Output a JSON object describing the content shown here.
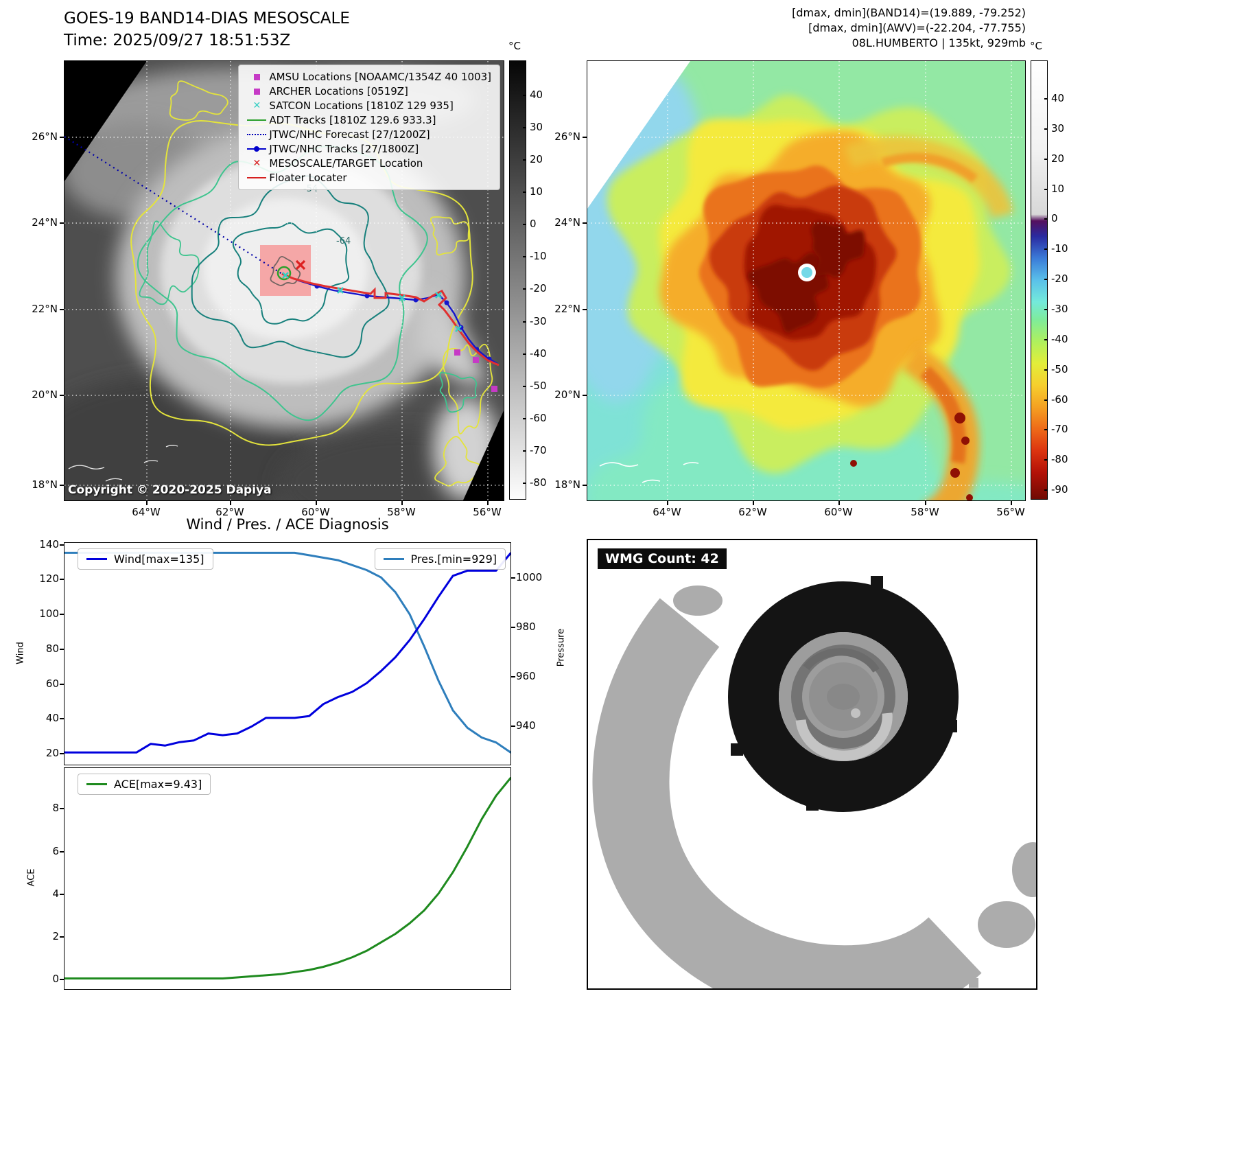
{
  "panel_band14": {
    "title": "GOES-19 BAND14-DIAS MESOSCALE",
    "time": "Time: 2025/09/27 18:51:53Z",
    "copyright": "Copyright © 2020-2025 Dapiya",
    "colorbar_unit": "°C",
    "colorbar_ticks": [
      "40",
      "30",
      "20",
      "10",
      "0",
      "-10",
      "-20",
      "-30",
      "-40",
      "-50",
      "-60",
      "-70",
      "-80"
    ],
    "lat_ticks": [
      "26°N",
      "24°N",
      "22°N",
      "20°N",
      "18°N"
    ],
    "lon_ticks": [
      "64°W",
      "62°W",
      "60°W",
      "58°W",
      "56°W"
    ],
    "contour_labels": [
      "-54",
      "-64"
    ],
    "legend_items": [
      {
        "label": "AMSU Locations [NOAAMC/1354Z 40 1003]",
        "marker": "square",
        "color": "#c63ac6"
      },
      {
        "label": "ARCHER Locations [0519Z]",
        "marker": "square",
        "color": "#c63ac6"
      },
      {
        "label": "SATCON Locations [1810Z 129 935]",
        "marker": "x",
        "color": "#35cfc3"
      },
      {
        "label": "ADT Tracks [1810Z 129.6 933.3]",
        "marker": "line",
        "color": "#2ca02c"
      },
      {
        "label": "JTWC/NHC Forecast [27/1200Z]",
        "marker": "dotted-line",
        "color": "#0000b8"
      },
      {
        "label": "JTWC/NHC Tracks [27/1800Z]",
        "marker": "line-marker",
        "color": "#0000cc"
      },
      {
        "label": "MESOSCALE/TARGET Location",
        "marker": "x",
        "color": "#d62020"
      },
      {
        "label": "Floater Locater",
        "marker": "line",
        "color": "#d62020"
      }
    ]
  },
  "panel_awv": {
    "header_lines": [
      "[dmax, dmin](BAND14)=(19.889, -79.252)",
      "[dmax, dmin](AWV)=(-22.204, -77.755)",
      "08L.HUMBERTO | 135kt, 929mb"
    ],
    "colorbar_unit": "°C",
    "colorbar_ticks": [
      "40",
      "30",
      "20",
      "10",
      "0",
      "-10",
      "-20",
      "-30",
      "-40",
      "-50",
      "-60",
      "-70",
      "-80",
      "-90"
    ],
    "lat_ticks": [
      "26°N",
      "24°N",
      "22°N",
      "20°N",
      "18°N"
    ],
    "lon_ticks": [
      "64°W",
      "62°W",
      "60°W",
      "58°W",
      "56°W"
    ]
  },
  "panel_diagnosis": {
    "title": "Wind / Pres. / ACE Diagnosis",
    "wind_legend": "Wind[max=135]",
    "pres_legend": "Pres.[min=929]",
    "ace_legend": "ACE[max=9.43]",
    "wind_axis_label": "Wind",
    "pres_axis_label": "Pressure",
    "ace_axis_label": "ACE"
  },
  "panel_wmg": {
    "label": "WMG Count: 42"
  },
  "chart_data": [
    {
      "type": "line",
      "title": "Wind / Pres. / ACE Diagnosis",
      "x_axis": "analysis time steps (no x tick labels shown)",
      "x": [
        0,
        1,
        2,
        3,
        4,
        5,
        6,
        7,
        8,
        9,
        10,
        11,
        12,
        13,
        14,
        15,
        16,
        17,
        18,
        19,
        20,
        21,
        22,
        23,
        24,
        25,
        26,
        27,
        28,
        29,
        30,
        31
      ],
      "series": [
        {
          "name": "Wind[max=135]",
          "yaxis": "left",
          "color": "#0000dd",
          "values": [
            20,
            20,
            20,
            20,
            20,
            20,
            25,
            24,
            26,
            27,
            31,
            30,
            31,
            35,
            40,
            40,
            40,
            41,
            48,
            52,
            55,
            60,
            67,
            75,
            85,
            97,
            110,
            122,
            125,
            125,
            125,
            135
          ]
        },
        {
          "name": "Pres.[min=929]",
          "yaxis": "right",
          "color": "#2e7ebc",
          "values": [
            1010,
            1010,
            1010,
            1010,
            1010,
            1010,
            1010,
            1010,
            1010,
            1010,
            1010,
            1010,
            1010,
            1010,
            1010,
            1010,
            1010,
            1009,
            1008,
            1007,
            1005,
            1003,
            1000,
            994,
            985,
            972,
            958,
            946,
            939,
            935,
            933,
            929
          ]
        }
      ],
      "ylabel_left": "Wind",
      "ylabel_right": "Pressure",
      "ylim_left": [
        13,
        141
      ],
      "ylim_right": [
        924,
        1014
      ],
      "yticks_left": [
        20,
        40,
        60,
        80,
        100,
        120,
        140
      ],
      "yticks_right": [
        940,
        960,
        980,
        1000
      ],
      "grid": false,
      "legend_positions": [
        "upper left",
        "upper right"
      ]
    },
    {
      "type": "line",
      "x": [
        0,
        1,
        2,
        3,
        4,
        5,
        6,
        7,
        8,
        9,
        10,
        11,
        12,
        13,
        14,
        15,
        16,
        17,
        18,
        19,
        20,
        21,
        22,
        23,
        24,
        25,
        26,
        27,
        28,
        29,
        30,
        31
      ],
      "series": [
        {
          "name": "ACE[max=9.43]",
          "color": "#1e8a1e",
          "values": [
            0,
            0,
            0,
            0,
            0,
            0,
            0,
            0,
            0,
            0,
            0,
            0,
            0.05,
            0.1,
            0.15,
            0.2,
            0.3,
            0.4,
            0.55,
            0.75,
            1.0,
            1.3,
            1.7,
            2.1,
            2.6,
            3.2,
            4.0,
            5.0,
            6.2,
            7.5,
            8.6,
            9.43
          ]
        }
      ],
      "ylabel": "ACE",
      "ylim": [
        -0.5,
        9.9
      ],
      "yticks": [
        0,
        2,
        4,
        6,
        8
      ],
      "grid": false,
      "legend_position": "upper left"
    }
  ]
}
